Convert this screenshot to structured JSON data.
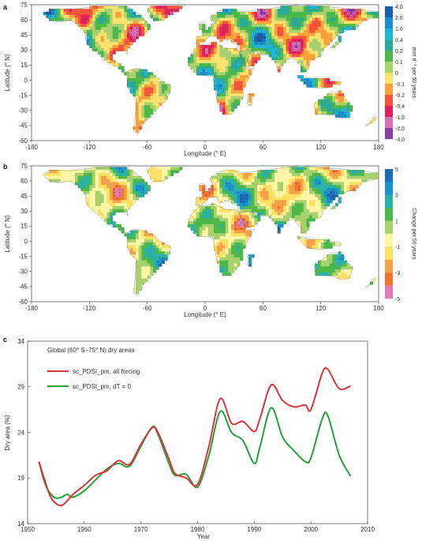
{
  "colors": {
    "forcing": "#d9343a",
    "dt0": "#25a03a",
    "ocean": "#ffffff",
    "land_outline": "#666666",
    "scale_a": [
      "#8a3fa0",
      "#d76fb5",
      "#e0215f",
      "#f3553a",
      "#f7a13a",
      "#fbe26c",
      "#a8d06c",
      "#4cb84a",
      "#2aa89a",
      "#1fb5d6",
      "#1b8fcc",
      "#1b5fa8"
    ],
    "scale_b": [
      "#e07bb9",
      "#f2752e",
      "#f4a24a",
      "#fce064",
      "#fdf6a4",
      "#a8d06c",
      "#4cb84a",
      "#2bb1a6",
      "#1d95c8",
      "#1a6db6"
    ]
  },
  "panels": {
    "a": {
      "letter": "a",
      "xlabel": "Longitude (° E)",
      "ylabel": "Latitude (° N)",
      "xticks": [
        "-180",
        "-120",
        "-60",
        "0",
        "60",
        "120",
        "180"
      ],
      "yticks": [
        "75",
        "60",
        "45",
        "30",
        "15",
        "0",
        "-15",
        "-30",
        "-45",
        "-60"
      ],
      "colorbar_title": "mm d⁻¹ per 50 years",
      "colorbar_labels": [
        "4.0",
        "2.0",
        "1.0",
        "0.4",
        "0.2",
        "0.1",
        "0",
        "-0.1",
        "-0.2",
        "-0.4",
        "-1.0",
        "-2.0",
        "-4.0"
      ]
    },
    "b": {
      "letter": "b",
      "xlabel": "Longitude (° E)",
      "ylabel": "Latitude (° N)",
      "xticks": [
        "-180",
        "-120",
        "-60",
        "0",
        "60",
        "120",
        "180"
      ],
      "yticks": [
        "75",
        "60",
        "45",
        "30",
        "15",
        "0",
        "-15",
        "-30",
        "-45",
        "-60"
      ],
      "colorbar_title": "Change per 50 years",
      "colorbar_labels": [
        "5",
        "3",
        "1",
        "-1",
        "-3",
        "-5"
      ]
    },
    "c": {
      "letter": "c"
    }
  },
  "chart_data": {
    "type": "line",
    "title": "Global (60° S–75° N) dry areas",
    "xlabel": "Year",
    "ylabel": "Dry area (%)",
    "xlim": [
      1950,
      2010
    ],
    "ylim": [
      14,
      34
    ],
    "xticks": [
      1950,
      1960,
      1970,
      1980,
      1990,
      2000,
      2010
    ],
    "yticks": [
      14,
      19,
      24,
      29,
      34
    ],
    "legend_position": "top-left",
    "series": [
      {
        "name": "sc_PDSI_pm, all forcing",
        "color_key": "forcing",
        "x": [
          1952,
          1953,
          1954,
          1955,
          1956,
          1957,
          1958,
          1960,
          1962,
          1964,
          1966,
          1968,
          1970,
          1972,
          1973,
          1975,
          1976,
          1978,
          1980,
          1982,
          1984,
          1986,
          1988,
          1990,
          1991,
          1993,
          1995,
          1997,
          1999,
          2000,
          2002,
          2003,
          2005,
          2007
        ],
        "y": [
          20.8,
          18.8,
          17.0,
          16.2,
          16.0,
          16.5,
          17.2,
          18.2,
          19.3,
          19.8,
          20.9,
          20.5,
          22.7,
          24.5,
          24.0,
          21.0,
          19.5,
          19.0,
          18.3,
          22.5,
          27.7,
          25.0,
          25.2,
          24.1,
          25.5,
          29.2,
          27.5,
          26.8,
          27.0,
          26.5,
          30.5,
          30.9,
          28.8,
          29.1
        ]
      },
      {
        "name": "sc_PDSI_pm, dT = 0",
        "color_key": "dt0",
        "x": [
          1952,
          1953,
          1954,
          1955,
          1956,
          1957,
          1958,
          1960,
          1962,
          1964,
          1966,
          1968,
          1970,
          1972,
          1973,
          1975,
          1976,
          1978,
          1980,
          1982,
          1984,
          1986,
          1988,
          1990,
          1991,
          1993,
          1995,
          1997,
          1999,
          2000,
          2002,
          2003,
          2005,
          2007
        ],
        "y": [
          20.8,
          18.5,
          17.3,
          16.8,
          16.9,
          17.2,
          16.9,
          17.6,
          18.8,
          20.0,
          20.6,
          20.3,
          22.5,
          24.6,
          23.8,
          20.5,
          19.3,
          19.4,
          18.0,
          21.5,
          26.3,
          24.0,
          23.1,
          20.6,
          22.4,
          26.7,
          23.5,
          22.0,
          20.8,
          21.2,
          25.5,
          25.8,
          21.5,
          19.2
        ]
      }
    ]
  }
}
